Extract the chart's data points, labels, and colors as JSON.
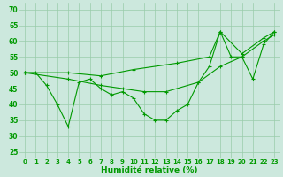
{
  "xlabel": "Humidité relative (%)",
  "ylabel_ticks": [
    25,
    30,
    35,
    40,
    45,
    50,
    55,
    60,
    65,
    70
  ],
  "xlim": [
    -0.5,
    23.5
  ],
  "ylim": [
    23,
    72
  ],
  "background_color": "#cce8dd",
  "grid_color": "#99ccaa",
  "line_color": "#009900",
  "series": [
    {
      "x": [
        0,
        1,
        2,
        3,
        4,
        5,
        6,
        7,
        8,
        9,
        10,
        11,
        12,
        13,
        14,
        15,
        16,
        17,
        18,
        19,
        20,
        21,
        22,
        23
      ],
      "y": [
        50,
        50,
        46,
        40,
        33,
        47,
        48,
        45,
        43,
        44,
        42,
        37,
        35,
        35,
        38,
        40,
        47,
        52,
        63,
        55,
        55,
        48,
        59,
        63
      ]
    },
    {
      "x": [
        0,
        4,
        7,
        9,
        11,
        13,
        16,
        18,
        20,
        22,
        23
      ],
      "y": [
        50,
        48,
        46,
        45,
        44,
        44,
        47,
        52,
        55,
        60,
        62
      ]
    },
    {
      "x": [
        0,
        4,
        7,
        10,
        14,
        17,
        18,
        20,
        22,
        23
      ],
      "y": [
        50,
        50,
        49,
        51,
        53,
        55,
        63,
        56,
        61,
        63
      ]
    }
  ]
}
